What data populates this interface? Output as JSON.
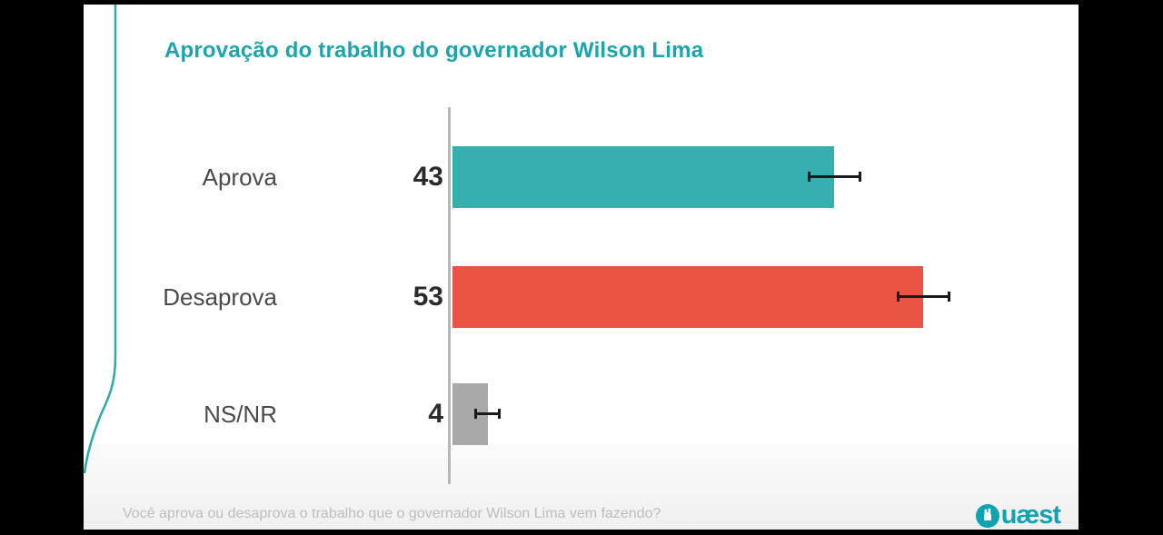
{
  "slide": {
    "title": "Aprovação do trabalho do governador Wilson Lima",
    "title_color": "#1BA4AD",
    "accent_line_color": "#2AA9AE",
    "footer": {
      "question": "Você aprova ou desaprova o trabalho que o governador Wilson Lima vem fazendo?",
      "logo_suffix": "uæst",
      "logo_color": "#0FA3B1"
    }
  },
  "chart_data": {
    "type": "bar",
    "orientation": "horizontal",
    "title": "Aprovação do trabalho do governador Wilson Lima",
    "categories": [
      "Aprova",
      "Desaprova",
      "NS/NR"
    ],
    "values": [
      43,
      53,
      4
    ],
    "error_margins": [
      3,
      3,
      1.5
    ],
    "bar_colors": [
      "#36B0AE",
      "#EA5442",
      "#A9A9A9"
    ],
    "category_label_color": "#4A4A4A",
    "value_label_color": "#2B2B2B",
    "axis_line_color": "#B7B7B7",
    "error_bar_color": "#1A1A1A",
    "xlim": [
      0,
      60
    ],
    "grid": false,
    "legend": false
  }
}
